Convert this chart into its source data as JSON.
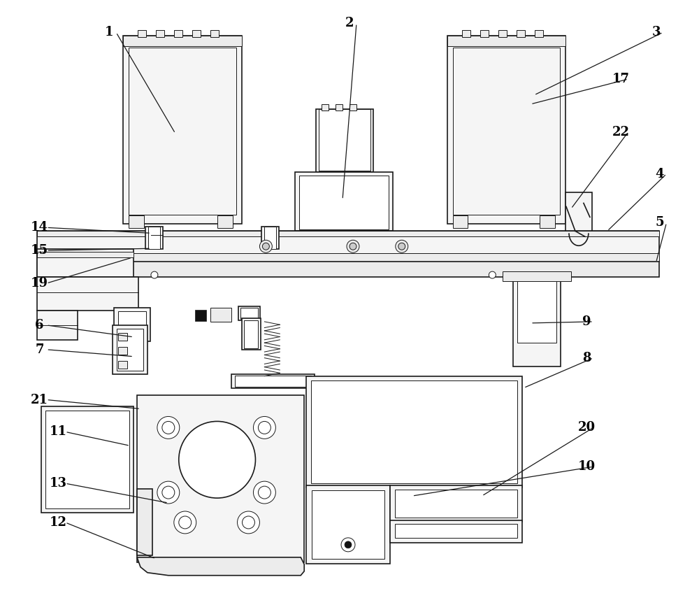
{
  "bg_color": "#ffffff",
  "line_color": "#000000",
  "lw": 1.2,
  "tlw": 0.7,
  "llw": 0.9,
  "leaders": [
    [
      "1",
      155,
      45,
      250,
      190
    ],
    [
      "2",
      500,
      32,
      490,
      285
    ],
    [
      "3",
      940,
      45,
      765,
      135
    ],
    [
      "4",
      945,
      248,
      870,
      330
    ],
    [
      "5",
      945,
      318,
      940,
      375
    ],
    [
      "6",
      55,
      465,
      190,
      482
    ],
    [
      "7",
      55,
      500,
      190,
      510
    ],
    [
      "8",
      840,
      512,
      750,
      555
    ],
    [
      "9",
      840,
      460,
      760,
      462
    ],
    [
      "10",
      840,
      668,
      590,
      710
    ],
    [
      "11",
      82,
      618,
      185,
      638
    ],
    [
      "12",
      82,
      748,
      222,
      800
    ],
    [
      "13",
      82,
      692,
      240,
      720
    ],
    [
      "14",
      55,
      325,
      215,
      333
    ],
    [
      "15",
      55,
      358,
      215,
      355
    ],
    [
      "17",
      890,
      112,
      760,
      148
    ],
    [
      "19",
      55,
      405,
      188,
      368
    ],
    [
      "20",
      840,
      612,
      690,
      710
    ],
    [
      "21",
      55,
      572,
      200,
      585
    ],
    [
      "22",
      890,
      188,
      818,
      298
    ]
  ]
}
